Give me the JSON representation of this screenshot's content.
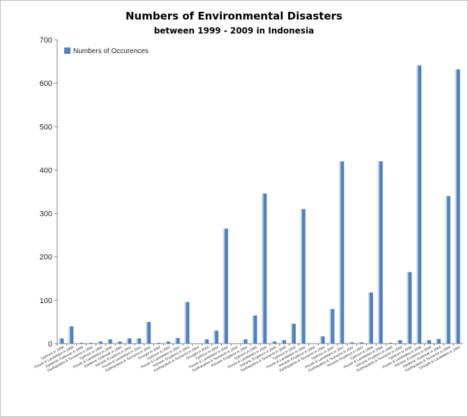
{
  "chart_data": {
    "type": "bar",
    "title": "Numbers of Environmental Disasters",
    "subtitle": "between  1999 - 2009 in Indonesia",
    "xlabel": "",
    "ylabel": "",
    "ylim": [
      0,
      700
    ],
    "yticks": [
      "0",
      "100",
      "200",
      "300",
      "400",
      "500",
      "600",
      "700"
    ],
    "grid": false,
    "legend_position": "top-left",
    "colors": {
      "bar": "#4f81bd",
      "bar_highlight": "#c5d5ea"
    },
    "series": [
      {
        "name": "Numbers of Occurences",
        "values": [
          12,
          40,
          2,
          2,
          5,
          10,
          5,
          12,
          12,
          50,
          2,
          5,
          13,
          96,
          0,
          10,
          30,
          265,
          0,
          10,
          65,
          346,
          5,
          8,
          46,
          310,
          0,
          17,
          80,
          420,
          3,
          3,
          118,
          420,
          2,
          8,
          165,
          641,
          8,
          11,
          340,
          632
        ]
      }
    ],
    "categories": [
      "Typhoon in 1999",
      "Floods & Landslides in 1999",
      "Epidemic Outbreak in 1999",
      "Earthquakes & Tsunamis in 2000",
      "Typhoon in 2000",
      "Floods & Landslides in 2000",
      "Epidemic Outbreak in 2000",
      "Volcanic Eruptions in 2001",
      "Floods & Landslides in 2001",
      "Earthquakes & Tsunamis in 2001",
      "Drought in 2002",
      "Typhoon in 2002",
      "Floods & Landslides in 2002",
      "Volcanic Eruptions in 2003",
      "Earthquakes & Tsunamis in 2003",
      "Drought in 2003",
      "Typhoon in 2004",
      "Floods & Landslides in 2004",
      "Earthquakes & Tsunamis in 2004",
      "Volcanic Eruptions in 2004",
      "Typhoon in 2005",
      "Floods & Landslides in 2005",
      "Volcanic Eruptions in 2005",
      "Earthquakes & Tsunamis in 2005",
      "Typhoon in 2006",
      "Floods & Landslides in 2006",
      "Volcanic Eruptions in 2006",
      "Earthquakes & Tsunamis in 2006",
      "Typhoon in 2007",
      "Floods & Landslides in 2007",
      "Earthquakes & Tsunamis in 2007",
      "Volcanic Eruptions in 2007",
      "Typhoon in 2008",
      "Floods & Landslides in 2008",
      "Volcanic Eruptions in 2008",
      "Earthquakes & Tsunamis in 2008",
      "Typhoon in 2009",
      "Floods & Landslides in 2009",
      "Volcanic Eruptions in 2009",
      "Epidemic Outbreak in 2009",
      "Earthquakes & Tsunamis in 2009",
      "Drought & Landslides in 2009"
    ]
  }
}
